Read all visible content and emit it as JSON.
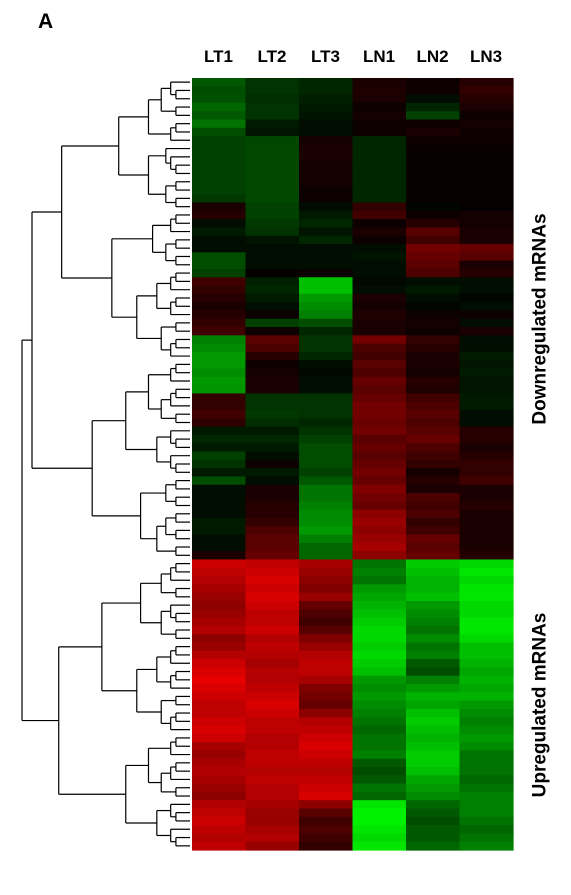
{
  "panel_label": "A",
  "chart_data": {
    "type": "heatmap",
    "columns": [
      "LT1",
      "LT2",
      "LT3",
      "LN1",
      "LN2",
      "LN3"
    ],
    "row_groups": [
      {
        "label": "Downregulated mRNAs",
        "rows": 58
      },
      {
        "label": "Upregulated mRNAs",
        "rows": 35
      }
    ],
    "color_scale": {
      "low": "#00ff00",
      "mid": "#000000",
      "high": "#ff0000"
    },
    "dendrogram": "rows",
    "values": [
      [
        -0.35,
        -0.2,
        -0.15,
        0.1,
        0.05,
        0.15
      ],
      [
        -0.3,
        -0.2,
        -0.15,
        0.12,
        0.05,
        0.2
      ],
      [
        -0.32,
        -0.18,
        -0.12,
        0.1,
        -0.05,
        0.15
      ],
      [
        -0.4,
        -0.2,
        -0.1,
        0.05,
        -0.15,
        0.1
      ],
      [
        -0.35,
        -0.2,
        -0.08,
        0.08,
        -0.25,
        0.05
      ],
      [
        -0.45,
        -0.1,
        -0.05,
        0.05,
        0.05,
        0.08
      ],
      [
        -0.3,
        -0.08,
        -0.05,
        0.05,
        0.1,
        0.05
      ],
      [
        -0.25,
        -0.28,
        0.08,
        -0.15,
        0.05,
        0.05
      ],
      [
        -0.25,
        -0.28,
        0.1,
        -0.15,
        0.03,
        0.03
      ],
      [
        -0.25,
        -0.28,
        0.1,
        -0.15,
        0.03,
        0.03
      ],
      [
        -0.25,
        -0.28,
        0.08,
        -0.15,
        0.03,
        0.03
      ],
      [
        -0.25,
        -0.28,
        0.08,
        -0.15,
        0.03,
        0.03
      ],
      [
        -0.25,
        -0.28,
        0.08,
        -0.15,
        0.03,
        0.03
      ],
      [
        -0.25,
        -0.28,
        0.05,
        -0.15,
        0.03,
        0.03
      ],
      [
        -0.22,
        -0.28,
        0.05,
        -0.15,
        0.03,
        0.03
      ],
      [
        0.1,
        -0.25,
        -0.05,
        0.2,
        -0.02,
        0.02
      ],
      [
        0.15,
        -0.25,
        -0.1,
        0.25,
        0.05,
        0.08
      ],
      [
        -0.05,
        -0.22,
        -0.15,
        0.05,
        0.15,
        0.08
      ],
      [
        -0.1,
        -0.2,
        -0.08,
        0.1,
        0.35,
        0.1
      ],
      [
        -0.05,
        -0.08,
        -0.15,
        0.05,
        0.25,
        0.1
      ],
      [
        -0.05,
        -0.05,
        -0.05,
        -0.05,
        0.45,
        0.4
      ],
      [
        -0.3,
        -0.05,
        -0.05,
        -0.08,
        0.4,
        0.35
      ],
      [
        -0.3,
        -0.05,
        -0.05,
        -0.05,
        0.35,
        0.1
      ],
      [
        -0.25,
        0.02,
        0.05,
        -0.05,
        0.3,
        0.15
      ],
      [
        0.25,
        -0.12,
        -0.75,
        -0.03,
        -0.05,
        -0.05
      ],
      [
        0.2,
        -0.15,
        -0.75,
        -0.05,
        -0.1,
        -0.05
      ],
      [
        0.15,
        -0.1,
        -0.6,
        0.1,
        -0.05,
        -0.02
      ],
      [
        0.1,
        -0.05,
        -0.55,
        0.08,
        -0.02,
        -0.05
      ],
      [
        0.15,
        0.05,
        -0.5,
        0.12,
        0.05,
        0.05
      ],
      [
        0.2,
        -0.25,
        -0.3,
        0.1,
        0.08,
        -0.05
      ],
      [
        0.25,
        0.05,
        -0.15,
        0.1,
        0.05,
        0.1
      ],
      [
        -0.5,
        0.35,
        -0.2,
        0.45,
        0.2,
        -0.05
      ],
      [
        -0.55,
        0.3,
        -0.2,
        0.3,
        0.15,
        -0.05
      ],
      [
        -0.6,
        0.15,
        -0.15,
        0.25,
        0.1,
        -0.1
      ],
      [
        -0.6,
        0.05,
        -0.05,
        0.35,
        0.1,
        -0.08
      ],
      [
        -0.55,
        0.08,
        -0.03,
        0.3,
        0.08,
        -0.1
      ],
      [
        -0.6,
        0.1,
        -0.05,
        0.4,
        0.15,
        -0.08
      ],
      [
        -0.58,
        0.1,
        -0.05,
        0.35,
        0.12,
        -0.08
      ],
      [
        0.2,
        -0.2,
        -0.2,
        0.4,
        0.25,
        -0.1
      ],
      [
        0.2,
        -0.2,
        -0.2,
        0.45,
        0.3,
        -0.1
      ],
      [
        0.25,
        -0.22,
        -0.2,
        0.45,
        0.35,
        -0.05
      ],
      [
        0.18,
        -0.18,
        -0.15,
        0.42,
        0.3,
        -0.05
      ],
      [
        -0.1,
        -0.1,
        -0.2,
        0.45,
        0.35,
        0.15
      ],
      [
        -0.15,
        -0.15,
        -0.25,
        0.35,
        0.4,
        0.15
      ],
      [
        -0.1,
        -0.1,
        -0.3,
        0.4,
        0.3,
        0.1
      ],
      [
        -0.25,
        -0.05,
        -0.3,
        0.35,
        0.25,
        0.15
      ],
      [
        -0.2,
        0.05,
        -0.3,
        0.4,
        0.2,
        0.2
      ],
      [
        -0.1,
        -0.1,
        -0.25,
        0.45,
        0.08,
        0.2
      ],
      [
        -0.3,
        -0.05,
        -0.35,
        0.4,
        0.15,
        0.25
      ],
      [
        -0.05,
        0.1,
        -0.45,
        0.5,
        0.1,
        0.1
      ],
      [
        -0.05,
        0.1,
        -0.45,
        0.45,
        0.3,
        0.1
      ],
      [
        -0.05,
        0.15,
        -0.5,
        0.4,
        0.25,
        0.15
      ],
      [
        -0.05,
        0.15,
        -0.55,
        0.55,
        0.3,
        0.1
      ],
      [
        -0.1,
        0.2,
        -0.55,
        0.6,
        0.2,
        0.1
      ],
      [
        -0.1,
        0.3,
        -0.6,
        0.55,
        0.25,
        0.1
      ],
      [
        -0.05,
        0.35,
        -0.5,
        0.6,
        0.4,
        0.1
      ],
      [
        -0.05,
        0.35,
        -0.4,
        0.65,
        0.35,
        0.1
      ],
      [
        0.1,
        0.4,
        -0.4,
        0.55,
        0.4,
        0.15
      ],
      [
        0.8,
        0.75,
        0.65,
        -0.45,
        -0.8,
        -0.85
      ],
      [
        0.75,
        0.8,
        0.6,
        -0.5,
        -0.75,
        -0.9
      ],
      [
        0.7,
        0.85,
        0.55,
        -0.45,
        -0.7,
        -0.85
      ],
      [
        0.65,
        0.8,
        0.5,
        -0.6,
        -0.7,
        -0.9
      ],
      [
        0.6,
        0.85,
        0.6,
        -0.65,
        -0.75,
        -0.9
      ],
      [
        0.55,
        0.8,
        0.4,
        -0.7,
        -0.6,
        -0.85
      ],
      [
        0.6,
        0.75,
        0.3,
        -0.75,
        -0.55,
        -0.85
      ],
      [
        0.65,
        0.75,
        0.25,
        -0.8,
        -0.5,
        -0.9
      ],
      [
        0.7,
        0.8,
        0.35,
        -0.85,
        -0.45,
        -0.9
      ],
      [
        0.55,
        0.7,
        0.5,
        -0.85,
        -0.55,
        -0.85
      ],
      [
        0.6,
        0.75,
        0.6,
        -0.8,
        -0.45,
        -0.75
      ],
      [
        0.7,
        0.7,
        0.7,
        -0.85,
        -0.5,
        -0.75
      ],
      [
        0.8,
        0.65,
        0.75,
        -0.8,
        -0.35,
        -0.7
      ],
      [
        0.85,
        0.7,
        0.75,
        -0.75,
        -0.3,
        -0.65
      ],
      [
        0.9,
        0.7,
        0.65,
        -0.6,
        -0.5,
        -0.7
      ],
      [
        0.85,
        0.75,
        0.5,
        -0.55,
        -0.6,
        -0.65
      ],
      [
        0.8,
        0.8,
        0.45,
        -0.6,
        -0.7,
        -0.7
      ],
      [
        0.75,
        0.85,
        0.4,
        -0.55,
        -0.65,
        -0.6
      ],
      [
        0.75,
        0.8,
        0.55,
        -0.5,
        -0.75,
        -0.55
      ],
      [
        0.8,
        0.75,
        0.7,
        -0.45,
        -0.8,
        -0.5
      ],
      [
        0.85,
        0.75,
        0.75,
        -0.4,
        -0.75,
        -0.55
      ],
      [
        0.8,
        0.7,
        0.8,
        -0.45,
        -0.7,
        -0.6
      ],
      [
        0.65,
        0.7,
        0.85,
        -0.45,
        -0.75,
        -0.55
      ],
      [
        0.6,
        0.75,
        0.8,
        -0.5,
        -0.8,
        -0.45
      ],
      [
        0.65,
        0.75,
        0.75,
        -0.35,
        -0.8,
        -0.45
      ],
      [
        0.7,
        0.7,
        0.7,
        -0.3,
        -0.75,
        -0.45
      ],
      [
        0.65,
        0.75,
        0.75,
        -0.35,
        -0.65,
        -0.4
      ],
      [
        0.6,
        0.7,
        0.8,
        -0.45,
        -0.6,
        -0.45
      ],
      [
        0.55,
        0.7,
        0.85,
        -0.4,
        -0.55,
        -0.5
      ],
      [
        0.7,
        0.65,
        0.55,
        -0.9,
        -0.4,
        -0.5
      ],
      [
        0.75,
        0.6,
        0.35,
        -0.95,
        -0.35,
        -0.5
      ],
      [
        0.8,
        0.6,
        0.25,
        -0.95,
        -0.3,
        -0.45
      ],
      [
        0.75,
        0.65,
        0.3,
        -0.9,
        -0.35,
        -0.4
      ],
      [
        0.7,
        0.7,
        0.25,
        -0.85,
        -0.35,
        -0.45
      ],
      [
        0.75,
        0.6,
        0.2,
        -0.9,
        -0.4,
        -0.5
      ]
    ]
  }
}
